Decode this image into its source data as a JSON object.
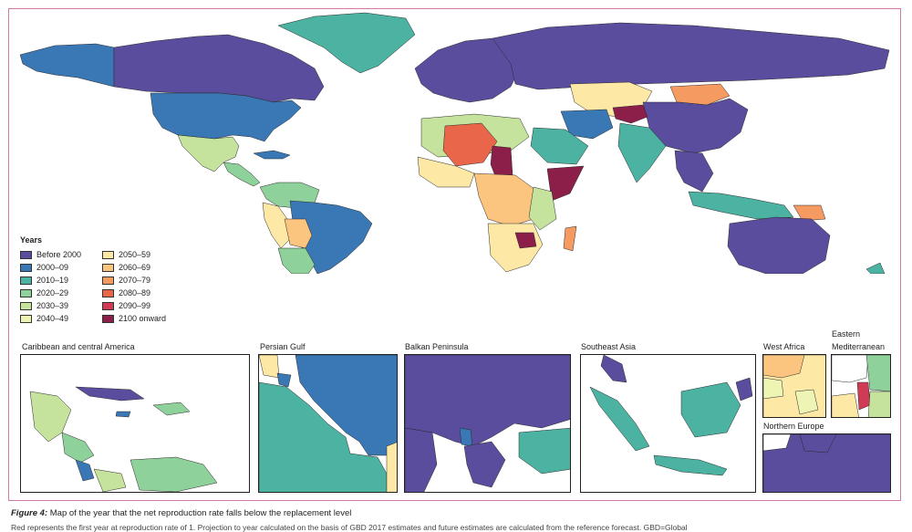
{
  "legend": {
    "title": "Years",
    "items": [
      {
        "label": "Before 2000",
        "color": "#5a4d9e"
      },
      {
        "label": "2000–09",
        "color": "#3a78b5"
      },
      {
        "label": "2010–19",
        "color": "#4cb3a3"
      },
      {
        "label": "2020–29",
        "color": "#8fd19b"
      },
      {
        "label": "2030–39",
        "color": "#c5e39c"
      },
      {
        "label": "2040–49",
        "color": "#eef4b4"
      },
      {
        "label": "2050–59",
        "color": "#fde8a6"
      },
      {
        "label": "2060–69",
        "color": "#fbc57f"
      },
      {
        "label": "2070–79",
        "color": "#f59b61"
      },
      {
        "label": "2080–89",
        "color": "#e9664b"
      },
      {
        "label": "2090–99",
        "color": "#cf3a55"
      },
      {
        "label": "2100 onward",
        "color": "#8c1e4a"
      }
    ]
  },
  "insets": {
    "caribbean": "Caribbean and central America",
    "persian_gulf": "Persian Gulf",
    "balkan": "Balkan Peninsula",
    "southeast_asia": "Southeast Asia",
    "west_africa": "West Africa",
    "east_med_line1": "Eastern",
    "east_med_line2": "Mediterranean",
    "northern_europe": "Northern Europe"
  },
  "caption": {
    "figure": "Figure 4:",
    "title": "Map of the year that the net reproduction rate falls below the replacement level",
    "subtext": "Red represents the first year at reproduction rate of 1. Projection to year calculated on the basis of GBD 2017 estimates and future estimates are calculated from the reference forecast. GBD=Global"
  },
  "colors": {
    "frame_border": "#d57aa6",
    "ocean": "#ffffff",
    "region_border": "#2a2a2a"
  }
}
